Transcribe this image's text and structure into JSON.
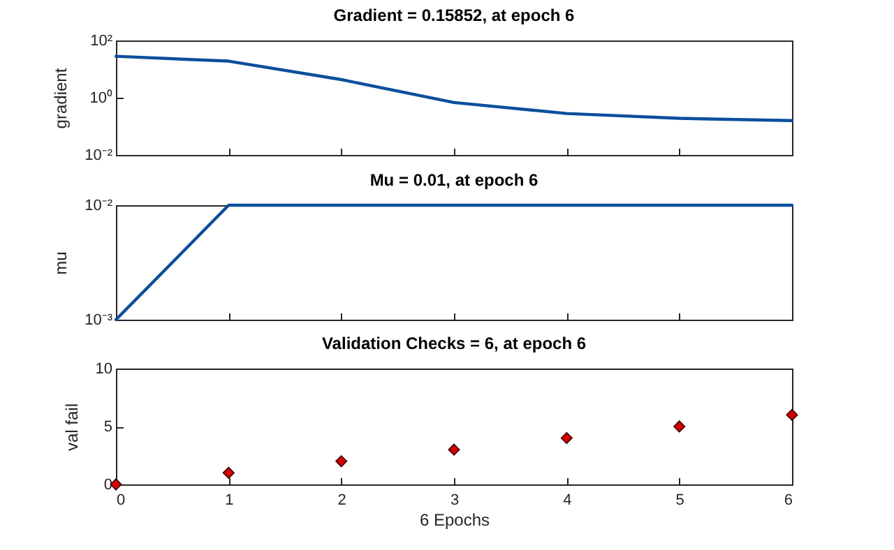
{
  "chart_data": [
    {
      "type": "line",
      "title": "Gradient = 0.15852, at epoch 6",
      "ylabel": "gradient",
      "x": [
        0,
        1,
        2,
        3,
        4,
        5,
        6
      ],
      "series": [
        {
          "color": "#0b4f9c",
          "values": [
            28,
            19,
            4.3,
            0.68,
            0.28,
            0.19,
            0.15852
          ]
        }
      ],
      "xlim": [
        0,
        6
      ],
      "xticks": [
        0,
        1,
        2,
        3,
        4,
        5,
        6
      ],
      "ylim": [
        0.01,
        100
      ],
      "log": "y",
      "yticks": [
        {
          "value": 0.01,
          "label": "10⁻²"
        },
        {
          "value": 1,
          "label": "10⁰"
        },
        {
          "value": 100,
          "label": "10²"
        }
      ],
      "tick_labels": "y",
      "grid": false,
      "marker": "none",
      "line_style": "solid"
    },
    {
      "type": "line",
      "title": "Mu = 0.01, at epoch 6",
      "ylabel": "mu",
      "x": [
        0,
        1,
        2,
        3,
        4,
        5,
        6
      ],
      "series": [
        {
          "color": "#0b4f9c",
          "values": [
            0.001,
            0.01,
            0.01,
            0.01,
            0.01,
            0.01,
            0.01
          ]
        }
      ],
      "xlim": [
        0,
        6
      ],
      "xticks": [
        0,
        1,
        2,
        3,
        4,
        5,
        6
      ],
      "ylim": [
        0.001,
        0.01
      ],
      "log": "y",
      "yticks": [
        {
          "value": 0.001,
          "label": "10⁻³"
        },
        {
          "value": 0.01,
          "label": "10⁻²"
        }
      ],
      "tick_labels": "y",
      "grid": false,
      "marker": "none",
      "line_style": "solid"
    },
    {
      "type": "scatter",
      "title": "Validation Checks = 6, at epoch 6",
      "ylabel": "val fail",
      "xlabel": "6 Epochs",
      "x": [
        0,
        1,
        2,
        3,
        4,
        5,
        6
      ],
      "series": [
        {
          "color": "#d40000",
          "values": [
            0,
            1,
            2,
            3,
            4,
            5,
            6
          ]
        }
      ],
      "xlim": [
        0,
        6
      ],
      "xticks": [
        0,
        1,
        2,
        3,
        4,
        5,
        6
      ],
      "ylim": [
        0,
        10
      ],
      "yticks": [
        0,
        5,
        10
      ],
      "grid": false,
      "marker": "diamond"
    }
  ]
}
